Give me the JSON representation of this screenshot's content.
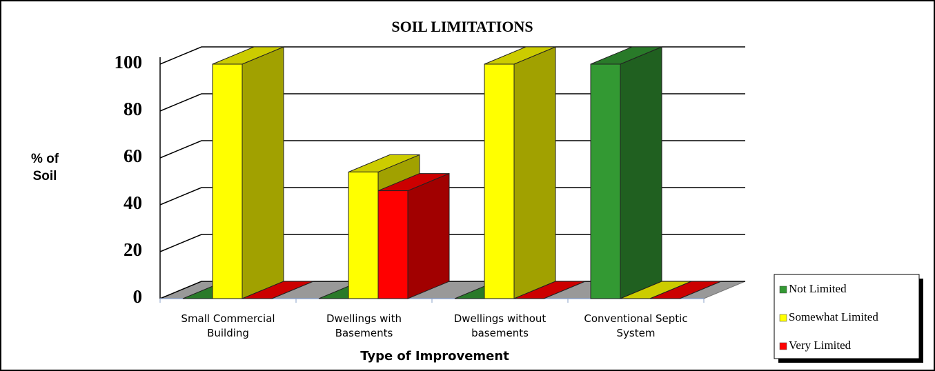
{
  "chart_data": {
    "type": "bar3d",
    "title": "SOIL LIMITATIONS",
    "x_label": "Type of Improvement",
    "y_label": "% of Soil",
    "categories": [
      "Small Commercial Building",
      "Dwellings with Basements",
      "Dwellings without basements",
      "Conventional Septic System"
    ],
    "series": [
      {
        "name": "Not Limited",
        "color": "#339933",
        "values": [
          0,
          0,
          0,
          100
        ]
      },
      {
        "name": "Somewhat Limited",
        "color": "#ffff00",
        "values": [
          100,
          54,
          100,
          0
        ]
      },
      {
        "name": "Very Limited",
        "color": "#ff0000",
        "values": [
          0,
          46,
          0,
          0
        ]
      }
    ],
    "ylim": [
      0,
      100
    ],
    "yticks": [
      0,
      20,
      40,
      60,
      80,
      100
    ],
    "grid": true,
    "legend": "lower right"
  }
}
